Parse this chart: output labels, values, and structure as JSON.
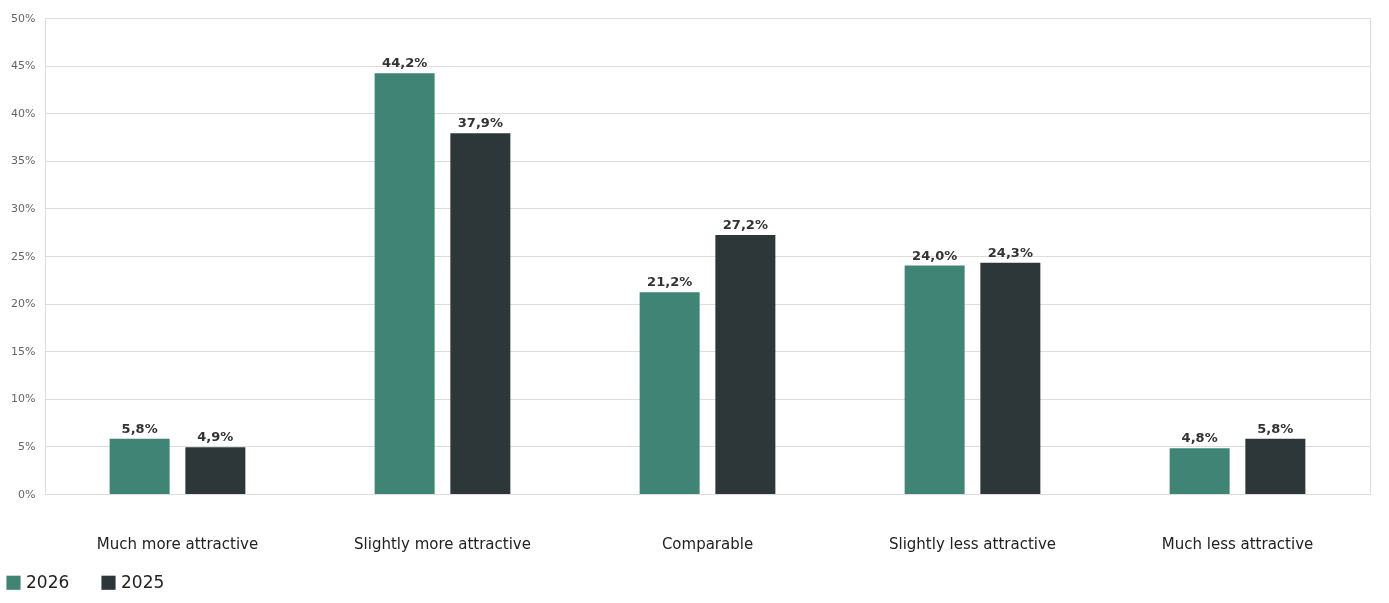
{
  "chart_data": {
    "type": "bar",
    "categories": [
      "Much more attractive",
      "Slightly more attractive",
      "Comparable",
      "Slightly less attractive",
      "Much less attractive"
    ],
    "series": [
      {
        "name": "2026",
        "color": "#3f8474",
        "values": [
          5.8,
          44.2,
          21.2,
          24.0,
          4.8
        ],
        "value_labels": [
          "5,8%",
          "44,2%",
          "21,2%",
          "24,0%",
          "4,8%"
        ]
      },
      {
        "name": "2025",
        "color": "#2d3639",
        "values": [
          4.9,
          37.9,
          27.2,
          24.3,
          5.8
        ],
        "value_labels": [
          "4,9%",
          "37,9%",
          "27,2%",
          "24,3%",
          "5,8%"
        ]
      }
    ],
    "ylim": [
      0,
      50
    ],
    "yticks": [
      {
        "value": 0,
        "label": "0%"
      },
      {
        "value": 5,
        "label": "5%"
      },
      {
        "value": 10,
        "label": "10%"
      },
      {
        "value": 15,
        "label": "15%"
      },
      {
        "value": 20,
        "label": "20%"
      },
      {
        "value": 25,
        "label": "25%"
      },
      {
        "value": 30,
        "label": "30%"
      },
      {
        "value": 35,
        "label": "35%"
      },
      {
        "value": 40,
        "label": "40%"
      },
      {
        "value": 45,
        "label": "45%"
      },
      {
        "value": 50,
        "label": "50%"
      }
    ],
    "grid": "y",
    "legend": "bottom left"
  }
}
